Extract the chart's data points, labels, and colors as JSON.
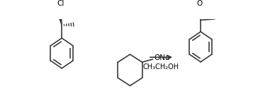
{
  "bg_color": "#ffffff",
  "line_color": "#3a3a3a",
  "lw": 1.2,
  "arrow_color": "#3a3a3a",
  "text_color": "#000000",
  "cl_color": "#000000",
  "reagent_text": "CH₃CH₂OH",
  "ona_text": "ONa",
  "cl_text": "Cl",
  "o_text": "O"
}
